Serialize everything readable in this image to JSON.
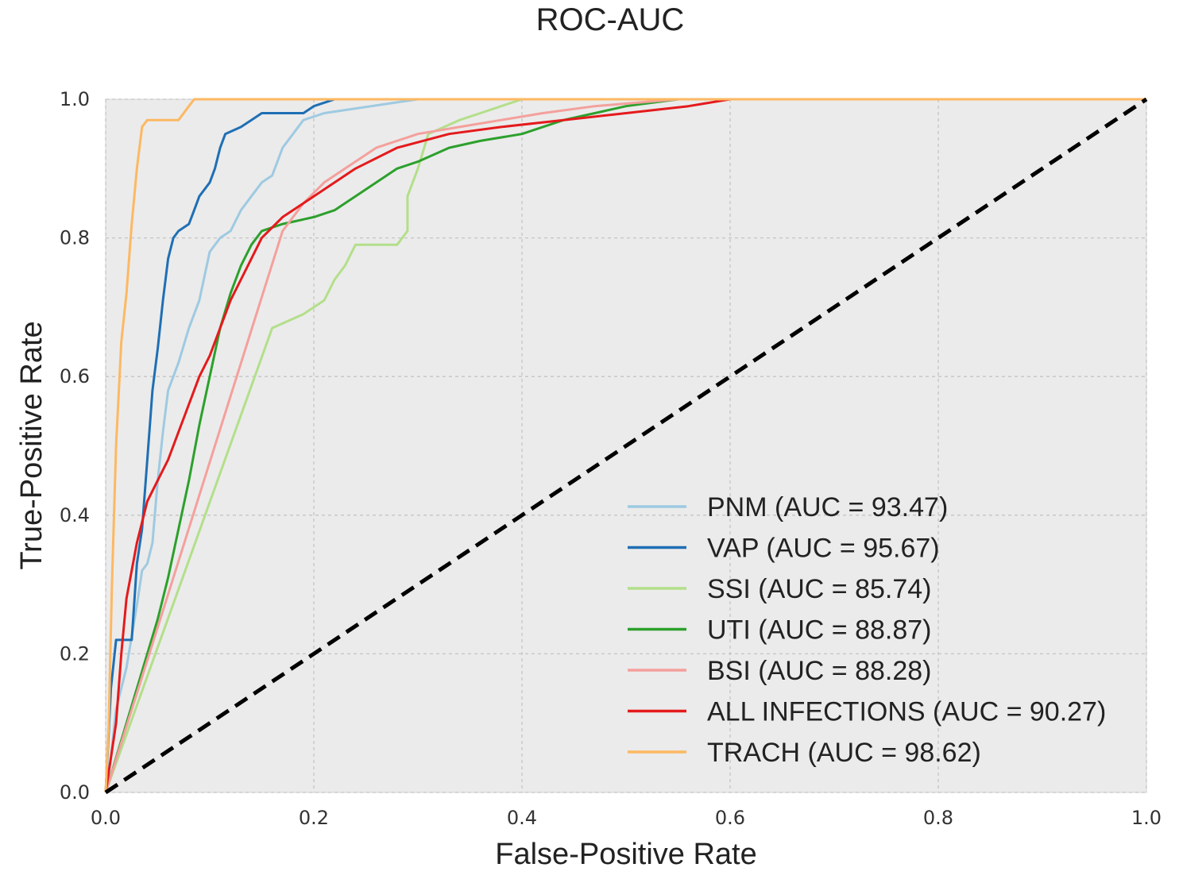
{
  "chart_data": {
    "type": "line",
    "title": "ROC-AUC",
    "xlabel": "False-Positive Rate",
    "ylabel": "True-Positive Rate",
    "xlim": [
      0,
      1
    ],
    "ylim": [
      0,
      1
    ],
    "xticks": [
      "0.0",
      "0.2",
      "0.4",
      "0.6",
      "0.8",
      "1.0"
    ],
    "yticks": [
      "0.0",
      "0.2",
      "0.4",
      "0.6",
      "0.8",
      "1.0"
    ],
    "grid": true,
    "legend_position": "lower-right",
    "diagonal": {
      "style": "dashed",
      "color": "#000000",
      "points": [
        [
          0,
          0
        ],
        [
          1,
          1
        ]
      ]
    },
    "series": [
      {
        "name": "PNM (AUC = 93.47)",
        "color": "#9ecae1",
        "points": [
          [
            0,
            0
          ],
          [
            0.005,
            0.05
          ],
          [
            0.01,
            0.12
          ],
          [
            0.02,
            0.18
          ],
          [
            0.03,
            0.27
          ],
          [
            0.035,
            0.32
          ],
          [
            0.04,
            0.33
          ],
          [
            0.045,
            0.36
          ],
          [
            0.05,
            0.45
          ],
          [
            0.055,
            0.52
          ],
          [
            0.06,
            0.58
          ],
          [
            0.07,
            0.62
          ],
          [
            0.08,
            0.67
          ],
          [
            0.09,
            0.71
          ],
          [
            0.1,
            0.78
          ],
          [
            0.11,
            0.8
          ],
          [
            0.12,
            0.81
          ],
          [
            0.13,
            0.84
          ],
          [
            0.14,
            0.86
          ],
          [
            0.15,
            0.88
          ],
          [
            0.16,
            0.89
          ],
          [
            0.17,
            0.93
          ],
          [
            0.18,
            0.95
          ],
          [
            0.19,
            0.97
          ],
          [
            0.21,
            0.98
          ],
          [
            0.3,
            1.0
          ],
          [
            1,
            1
          ]
        ]
      },
      {
        "name": "VAP (AUC = 95.67)",
        "color": "#1f6fb4",
        "points": [
          [
            0,
            0
          ],
          [
            0.005,
            0.15
          ],
          [
            0.01,
            0.22
          ],
          [
            0.025,
            0.22
          ],
          [
            0.03,
            0.33
          ],
          [
            0.035,
            0.38
          ],
          [
            0.04,
            0.48
          ],
          [
            0.045,
            0.58
          ],
          [
            0.05,
            0.64
          ],
          [
            0.055,
            0.71
          ],
          [
            0.06,
            0.77
          ],
          [
            0.065,
            0.8
          ],
          [
            0.07,
            0.81
          ],
          [
            0.08,
            0.82
          ],
          [
            0.085,
            0.84
          ],
          [
            0.09,
            0.86
          ],
          [
            0.1,
            0.88
          ],
          [
            0.105,
            0.9
          ],
          [
            0.11,
            0.93
          ],
          [
            0.115,
            0.95
          ],
          [
            0.13,
            0.96
          ],
          [
            0.14,
            0.97
          ],
          [
            0.15,
            0.98
          ],
          [
            0.19,
            0.98
          ],
          [
            0.2,
            0.99
          ],
          [
            0.22,
            1.0
          ],
          [
            1,
            1
          ]
        ]
      },
      {
        "name": "SSI (AUC = 85.74)",
        "color": "#b3df8a",
        "points": [
          [
            0,
            0
          ],
          [
            0.16,
            0.67
          ],
          [
            0.19,
            0.69
          ],
          [
            0.21,
            0.71
          ],
          [
            0.22,
            0.74
          ],
          [
            0.23,
            0.76
          ],
          [
            0.24,
            0.79
          ],
          [
            0.28,
            0.79
          ],
          [
            0.29,
            0.81
          ],
          [
            0.29,
            0.86
          ],
          [
            0.3,
            0.9
          ],
          [
            0.31,
            0.95
          ],
          [
            0.34,
            0.97
          ],
          [
            0.36,
            0.98
          ],
          [
            0.4,
            1.0
          ],
          [
            1,
            1
          ]
        ]
      },
      {
        "name": "UTI (AUC = 88.87)",
        "color": "#2ca02c",
        "points": [
          [
            0,
            0
          ],
          [
            0.01,
            0.05
          ],
          [
            0.02,
            0.1
          ],
          [
            0.03,
            0.15
          ],
          [
            0.04,
            0.2
          ],
          [
            0.05,
            0.25
          ],
          [
            0.06,
            0.31
          ],
          [
            0.07,
            0.38
          ],
          [
            0.08,
            0.45
          ],
          [
            0.09,
            0.53
          ],
          [
            0.1,
            0.6
          ],
          [
            0.11,
            0.67
          ],
          [
            0.12,
            0.72
          ],
          [
            0.13,
            0.76
          ],
          [
            0.14,
            0.79
          ],
          [
            0.15,
            0.81
          ],
          [
            0.17,
            0.82
          ],
          [
            0.2,
            0.83
          ],
          [
            0.22,
            0.84
          ],
          [
            0.24,
            0.86
          ],
          [
            0.26,
            0.88
          ],
          [
            0.28,
            0.9
          ],
          [
            0.3,
            0.91
          ],
          [
            0.33,
            0.93
          ],
          [
            0.36,
            0.94
          ],
          [
            0.4,
            0.95
          ],
          [
            0.44,
            0.97
          ],
          [
            0.47,
            0.98
          ],
          [
            0.5,
            0.99
          ],
          [
            0.55,
            1.0
          ],
          [
            1,
            1
          ]
        ]
      },
      {
        "name": "BSI (AUC = 88.28)",
        "color": "#f4a09c",
        "points": [
          [
            0,
            0
          ],
          [
            0.17,
            0.81
          ],
          [
            0.19,
            0.85
          ],
          [
            0.21,
            0.88
          ],
          [
            0.23,
            0.9
          ],
          [
            0.26,
            0.93
          ],
          [
            0.3,
            0.95
          ],
          [
            0.34,
            0.96
          ],
          [
            0.38,
            0.97
          ],
          [
            0.42,
            0.98
          ],
          [
            0.47,
            0.99
          ],
          [
            0.55,
            1.0
          ],
          [
            1,
            1
          ]
        ]
      },
      {
        "name": "ALL INFECTIONS (AUC = 90.27)",
        "color": "#e41a1c",
        "points": [
          [
            0,
            0
          ],
          [
            0.005,
            0.05
          ],
          [
            0.01,
            0.1
          ],
          [
            0.015,
            0.2
          ],
          [
            0.02,
            0.28
          ],
          [
            0.03,
            0.36
          ],
          [
            0.04,
            0.42
          ],
          [
            0.05,
            0.45
          ],
          [
            0.06,
            0.48
          ],
          [
            0.07,
            0.52
          ],
          [
            0.08,
            0.56
          ],
          [
            0.09,
            0.6
          ],
          [
            0.1,
            0.63
          ],
          [
            0.11,
            0.67
          ],
          [
            0.12,
            0.71
          ],
          [
            0.13,
            0.74
          ],
          [
            0.14,
            0.77
          ],
          [
            0.15,
            0.8
          ],
          [
            0.17,
            0.83
          ],
          [
            0.19,
            0.85
          ],
          [
            0.21,
            0.87
          ],
          [
            0.24,
            0.9
          ],
          [
            0.28,
            0.93
          ],
          [
            0.33,
            0.95
          ],
          [
            0.38,
            0.96
          ],
          [
            0.44,
            0.97
          ],
          [
            0.5,
            0.98
          ],
          [
            0.56,
            0.99
          ],
          [
            0.6,
            1.0
          ],
          [
            1,
            1
          ]
        ]
      },
      {
        "name": "TRACH (AUC = 98.62)",
        "color": "#fdb863",
        "points": [
          [
            0,
            0
          ],
          [
            0.003,
            0.1
          ],
          [
            0.006,
            0.3
          ],
          [
            0.01,
            0.5
          ],
          [
            0.015,
            0.65
          ],
          [
            0.02,
            0.72
          ],
          [
            0.025,
            0.82
          ],
          [
            0.03,
            0.9
          ],
          [
            0.035,
            0.96
          ],
          [
            0.04,
            0.97
          ],
          [
            0.07,
            0.97
          ],
          [
            0.08,
            0.99
          ],
          [
            0.085,
            1.0
          ],
          [
            1,
            1
          ]
        ]
      }
    ]
  }
}
